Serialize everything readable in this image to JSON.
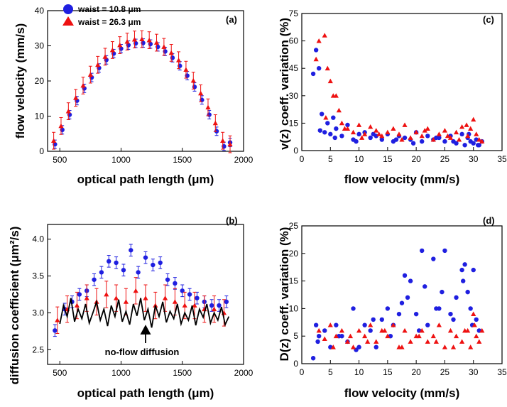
{
  "colors": {
    "blue": "#1f1fe0",
    "red": "#ee1111",
    "black": "#000000"
  },
  "chart_data": [
    {
      "panel": "(a)",
      "type": "scatter",
      "xlabel": "optical path length (μm)",
      "ylabel": "flow velocity (mm/s)",
      "xlim": [
        400,
        2000
      ],
      "ylim": [
        0,
        40
      ],
      "xticks": [
        500,
        1000,
        1500,
        2000
      ],
      "yticks": [
        0,
        10,
        20,
        30,
        40
      ],
      "legend": [
        "waist = 10.8 μm",
        "waist = 26.3 μm"
      ],
      "series": [
        {
          "name": "waist = 10.8 μm",
          "color": "#1f1fe0",
          "marker": "circle",
          "x": [
            460,
            520,
            580,
            640,
            700,
            760,
            820,
            880,
            940,
            1000,
            1060,
            1120,
            1180,
            1240,
            1300,
            1360,
            1420,
            1480,
            1540,
            1600,
            1660,
            1720,
            1780,
            1840,
            1890
          ],
          "y": [
            2,
            6.1,
            10.4,
            14.4,
            17.9,
            21,
            23.7,
            26,
            27.8,
            29.2,
            30.2,
            30.7,
            30.8,
            30.5,
            29.7,
            28.4,
            26.6,
            24.3,
            21.5,
            18.3,
            14.6,
            10.4,
            5.7,
            1.4,
            2.5
          ],
          "err": 1.2
        },
        {
          "name": "waist = 26.3 μm",
          "color": "#ee1111",
          "marker": "triangle",
          "x": [
            450,
            510,
            570,
            630,
            690,
            750,
            810,
            870,
            930,
            990,
            1050,
            1110,
            1170,
            1230,
            1290,
            1350,
            1410,
            1470,
            1530,
            1590,
            1650,
            1710,
            1770,
            1830,
            1890
          ],
          "y": [
            3,
            7.2,
            11.4,
            15.2,
            18.7,
            21.8,
            24.6,
            26.9,
            28.8,
            30.2,
            31.2,
            31.8,
            31.9,
            31.6,
            30.9,
            29.7,
            28,
            25.9,
            23.2,
            20.1,
            16.5,
            12.5,
            8,
            3,
            2
          ],
          "err": 2.4
        }
      ]
    },
    {
      "panel": "(b)",
      "type": "scatter",
      "xlabel": "optical path length (μm)",
      "ylabel": "diffusion coefficient (μm²/s)",
      "xlim": [
        400,
        2000
      ],
      "ylim": [
        2.3,
        4.2
      ],
      "xticks": [
        500,
        1000,
        1500,
        2000
      ],
      "yticks": [
        2.5,
        3.0,
        3.5,
        4.0
      ],
      "annotation": "no-flow diffusion",
      "series": [
        {
          "name": "",
          "color": "#1f1fe0",
          "marker": "circle",
          "x": [
            460,
            540,
            600,
            660,
            720,
            780,
            840,
            900,
            960,
            1020,
            1080,
            1140,
            1200,
            1260,
            1320,
            1380,
            1440,
            1500,
            1560,
            1620,
            1680,
            1740,
            1800,
            1860
          ],
          "y": [
            2.76,
            3.05,
            3.15,
            3.25,
            3.3,
            3.45,
            3.55,
            3.7,
            3.68,
            3.58,
            3.85,
            3.55,
            3.75,
            3.65,
            3.68,
            3.45,
            3.4,
            3.3,
            3.25,
            3.2,
            3.15,
            3.1,
            3.1,
            3.15
          ],
          "err": 0.08
        },
        {
          "name": "",
          "color": "#ee1111",
          "marker": "triangle",
          "x": [
            480,
            560,
            640,
            720,
            800,
            880,
            960,
            1040,
            1120,
            1200,
            1280,
            1360,
            1440,
            1520,
            1600,
            1680,
            1760,
            1840
          ],
          "y": [
            2.9,
            3.05,
            3.1,
            3.2,
            3.15,
            3.25,
            3.2,
            3.15,
            3.3,
            3.2,
            3.1,
            3.2,
            3.15,
            3.1,
            3.1,
            3.05,
            3.05,
            3.0
          ],
          "err": 0.18
        },
        {
          "name": "no-flow diffusion",
          "color": "#000000",
          "marker": "line",
          "x": [
            500,
            530,
            560,
            590,
            620,
            650,
            680,
            710,
            740,
            770,
            800,
            830,
            860,
            890,
            920,
            950,
            980,
            1010,
            1040,
            1070,
            1100,
            1130,
            1160,
            1190,
            1220,
            1250,
            1280,
            1310,
            1340,
            1370,
            1400,
            1430,
            1460,
            1490,
            1520,
            1550,
            1580,
            1610,
            1640,
            1670,
            1700,
            1730,
            1760,
            1790,
            1820,
            1850,
            1880
          ],
          "y": [
            2.85,
            3.1,
            2.95,
            3.2,
            2.88,
            3.05,
            2.92,
            3.12,
            2.86,
            3.0,
            3.15,
            2.9,
            3.05,
            2.82,
            3.1,
            2.95,
            3.18,
            2.88,
            3.02,
            2.84,
            3.12,
            2.96,
            3.2,
            2.9,
            3.05,
            2.8,
            3.1,
            2.95,
            3.15,
            2.87,
            3.02,
            2.92,
            3.12,
            2.85,
            3.0,
            2.9,
            3.1,
            2.83,
            3.05,
            2.94,
            3.12,
            2.86,
            3.0,
            2.9,
            3.08,
            2.84,
            2.95
          ]
        }
      ]
    },
    {
      "panel": "(c)",
      "type": "scatter",
      "xlabel": "flow velocity (mm/s)",
      "ylabel": "v(z) coeff. variation (%)",
      "xlim": [
        0,
        35
      ],
      "ylim": [
        0,
        75
      ],
      "xticks": [
        0,
        5,
        10,
        15,
        20,
        25,
        30,
        35
      ],
      "yticks": [
        0,
        15,
        30,
        45,
        60,
        75
      ],
      "series": [
        {
          "name": "waist = 10.8 μm",
          "color": "#1f1fe0",
          "marker": "circle",
          "x": [
            2,
            2.5,
            3,
            3.5,
            4,
            4.5,
            5,
            5.5,
            6,
            7,
            8,
            9,
            10,
            11,
            12,
            13,
            14,
            15,
            16,
            17,
            18,
            19,
            20,
            21,
            22,
            23,
            24,
            25,
            26,
            27,
            28,
            28.5,
            29,
            29.5,
            30,
            30.5,
            31,
            31.5,
            3.2,
            5.8,
            9.5,
            12.5,
            16.5,
            19.5,
            23.5,
            26.5,
            29.2,
            30.8
          ],
          "y": [
            42,
            55,
            45,
            20,
            10,
            15,
            9,
            18,
            12,
            8,
            14,
            6,
            9,
            10,
            7,
            8,
            6,
            9,
            5,
            8,
            7,
            6,
            10,
            5,
            8,
            6,
            7,
            5,
            8,
            4,
            9,
            3,
            7,
            5,
            4,
            6,
            3,
            5,
            11,
            7,
            5,
            9,
            6,
            4,
            7,
            5,
            9,
            3
          ]
        },
        {
          "name": "waist = 26.3 μm",
          "color": "#ee1111",
          "marker": "triangle",
          "x": [
            2.5,
            3,
            4,
            4.5,
            5,
            5.5,
            6,
            6.5,
            7,
            8,
            9,
            10,
            11,
            12,
            13,
            14,
            15,
            16,
            17,
            18,
            19,
            20,
            21,
            22,
            23,
            24,
            25,
            26,
            27,
            28,
            29,
            29.5,
            30,
            30.5,
            31,
            31.5,
            4.2,
            7.5,
            10.5,
            13.5,
            17.5,
            21.5,
            25.5,
            27.5,
            28.8
          ],
          "y": [
            50,
            60,
            63,
            45,
            38,
            30,
            30,
            22,
            15,
            12,
            10,
            14,
            9,
            13,
            11,
            8,
            10,
            12,
            9,
            14,
            7,
            10,
            8,
            12,
            6,
            9,
            11,
            7,
            10,
            13,
            8,
            12,
            17,
            9,
            6,
            5,
            18,
            12,
            7,
            9,
            6,
            11,
            8,
            6,
            14
          ]
        }
      ]
    },
    {
      "panel": "(d)",
      "type": "scatter",
      "xlabel": "flow velocity (mm/s)",
      "ylabel": "D(z) coeff. variation (%)",
      "xlim": [
        0,
        35
      ],
      "ylim": [
        0,
        25
      ],
      "xticks": [
        0,
        5,
        10,
        15,
        20,
        25,
        30,
        35
      ],
      "yticks": [
        0,
        5,
        10,
        15,
        20,
        25
      ],
      "series": [
        {
          "name": "waist = 10.8 μm",
          "color": "#1f1fe0",
          "marker": "circle",
          "x": [
            2,
            2.5,
            3,
            4,
            5,
            6,
            7,
            8,
            9,
            10,
            11,
            12,
            13,
            14,
            15,
            16,
            17,
            18,
            18.5,
            19,
            20,
            21,
            21.5,
            22,
            23,
            24,
            24.5,
            25,
            26,
            27,
            28,
            28.5,
            29,
            29.5,
            30,
            30.5,
            31,
            2.8,
            6.5,
            9.5,
            12.5,
            15.5,
            17.5,
            20.5,
            23.5,
            26.5,
            28.2,
            29.8
          ],
          "y": [
            1,
            7,
            5,
            6,
            3,
            7,
            5,
            4,
            10,
            3,
            7,
            6,
            3,
            8,
            10,
            7,
            9,
            16,
            12,
            15,
            9,
            20.5,
            14,
            7,
            19,
            10,
            13,
            20.5,
            9,
            12,
            17,
            18,
            13,
            10,
            17,
            8,
            6,
            4,
            5,
            2.5,
            8,
            5,
            11,
            6,
            10,
            8,
            15,
            7
          ],
          "err": 0
        },
        {
          "name": "waist = 26.3 μm",
          "color": "#ee1111",
          "marker": "triangle",
          "x": [
            3,
            4,
            5,
            6,
            7,
            8,
            9,
            10,
            11,
            12,
            13,
            14,
            15,
            16,
            17,
            18,
            19,
            20,
            21,
            22,
            23,
            24,
            25,
            26,
            27,
            28,
            29,
            29.5,
            30,
            30.5,
            31,
            31.5,
            5.5,
            8.5,
            11.5,
            14.5,
            17.5,
            20.5,
            23.5,
            26.5,
            28.5,
            30.2
          ],
          "y": [
            6,
            4.5,
            7,
            5,
            6,
            4,
            3,
            6,
            5,
            7,
            4,
            6,
            5,
            7,
            3,
            6,
            4,
            5,
            6,
            4,
            5,
            7,
            3,
            6,
            5,
            4,
            6,
            3,
            9,
            5,
            4,
            6,
            3,
            5,
            4,
            6,
            3,
            5,
            4,
            3,
            6,
            7
          ]
        }
      ]
    }
  ],
  "panels": {
    "a": {
      "tag": "(a)",
      "xlabel": "optical path length (μm)",
      "ylabel": "flow velocity (mm/s)",
      "legend1": "waist = 10.8 μm",
      "legend2": "waist = 26.3 μm"
    },
    "b": {
      "tag": "(b)",
      "xlabel": "optical path length (μm)",
      "ylabel": "diffusion coefficient (μm²/s)",
      "annotation": "no-flow diffusion"
    },
    "c": {
      "tag": "(c)",
      "xlabel": "flow velocity (mm/s)",
      "ylabel": "v(z) coeff. variation (%)"
    },
    "d": {
      "tag": "(d)",
      "xlabel": "flow velocity (mm/s)",
      "ylabel": "D(z) coeff. variation (%)"
    }
  }
}
